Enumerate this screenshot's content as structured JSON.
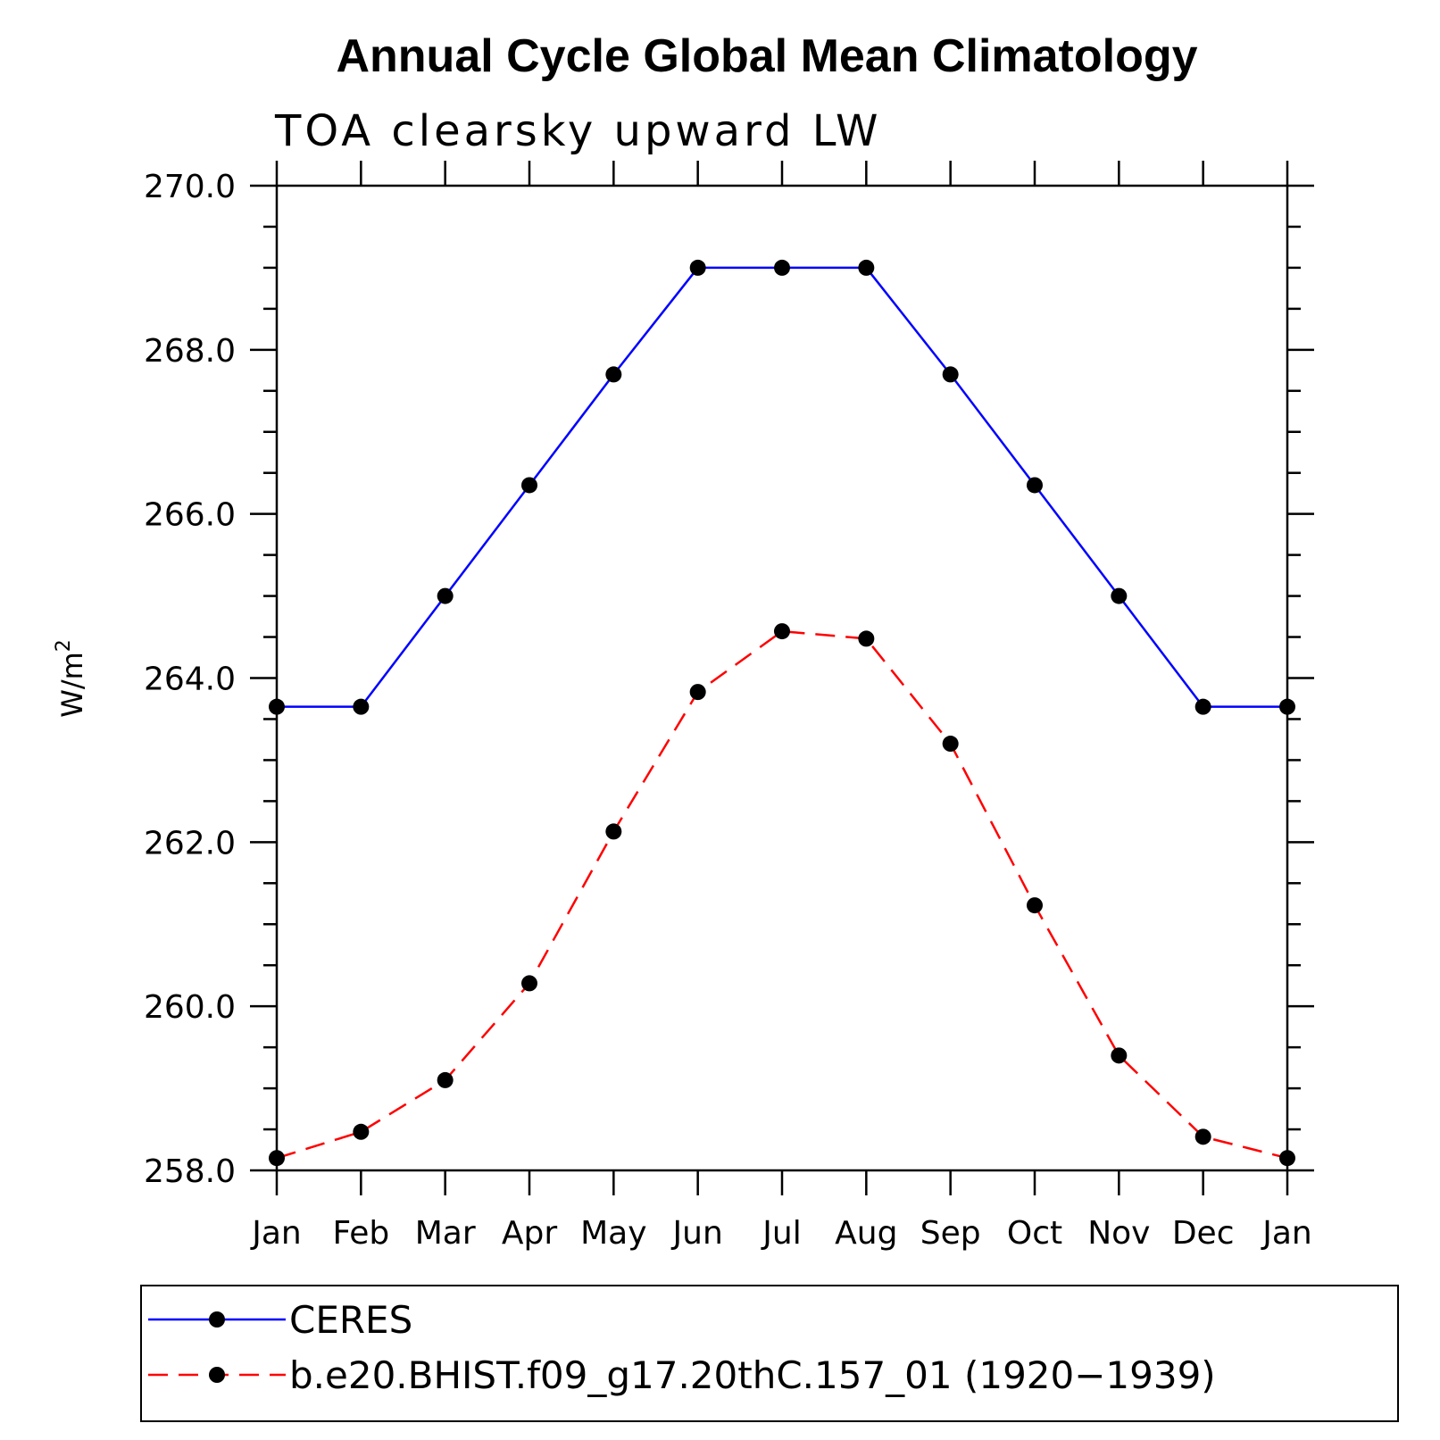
{
  "chart_data": {
    "type": "line",
    "title": "Annual Cycle Global Mean Climatology",
    "subtitle": "TOA clearsky upward LW",
    "ylabel": "W/m",
    "ylabel_superscript": "2",
    "xlabel": "",
    "categories": [
      "Jan",
      "Feb",
      "Mar",
      "Apr",
      "May",
      "Jun",
      "Jul",
      "Aug",
      "Sep",
      "Oct",
      "Nov",
      "Dec",
      "Jan"
    ],
    "ylim": [
      258.0,
      270.0
    ],
    "yticks": [
      258.0,
      260.0,
      262.0,
      264.0,
      266.0,
      268.0,
      270.0
    ],
    "ytick_labels": [
      "258.0",
      "260.0",
      "262.0",
      "264.0",
      "266.0",
      "268.0",
      "270.0"
    ],
    "grid": false,
    "legend_position": "bottom",
    "series": [
      {
        "name": "CERES",
        "color": "#0000ff",
        "line_style": "solid",
        "marker": "circle",
        "values": [
          263.65,
          263.65,
          265.0,
          266.35,
          267.7,
          269.0,
          269.0,
          269.0,
          267.7,
          266.35,
          265.0,
          263.65,
          263.65
        ]
      },
      {
        "name": "b.e20.BHIST.f09_g17.20thC.157_01 (1920−1939)",
        "color": "#ff0000",
        "line_style": "dashed",
        "marker": "circle",
        "values": [
          258.15,
          258.47,
          259.1,
          260.28,
          262.13,
          263.83,
          264.57,
          264.48,
          263.2,
          261.23,
          259.4,
          258.41,
          258.15
        ]
      }
    ]
  }
}
